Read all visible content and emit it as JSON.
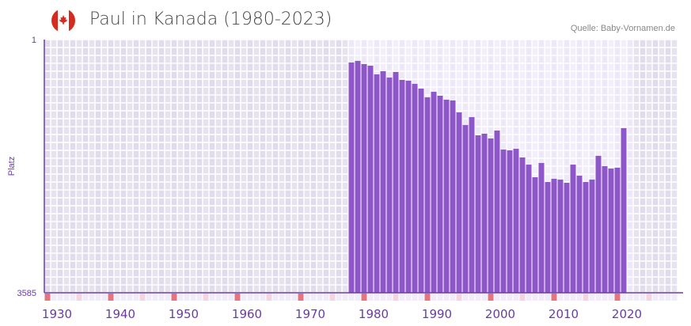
{
  "header": {
    "title": "Paul in Kanada (1980-2023)",
    "source": "Quelle: Baby-Vornamen.de",
    "flag_icon": "canada-flag-icon"
  },
  "chart_data": {
    "type": "bar",
    "title": "Paul in Kanada (1980-2023)",
    "xlabel": "",
    "ylabel": "Platz",
    "xlim": [
      1930,
      2030
    ],
    "ylim": [
      1,
      3585
    ],
    "y_inverted": true,
    "y_ticks": [
      "1",
      "3585"
    ],
    "x_ticks": [
      1930,
      1940,
      1950,
      1960,
      1970,
      1980,
      1990,
      2000,
      2010,
      2020
    ],
    "x": [
      1980,
      1981,
      1982,
      1983,
      1984,
      1985,
      1986,
      1987,
      1988,
      1989,
      1990,
      1991,
      1992,
      1993,
      1994,
      1995,
      1996,
      1997,
      1998,
      1999,
      2000,
      2001,
      2002,
      2003,
      2004,
      2005,
      2006,
      2007,
      2008,
      2009,
      2010,
      2011,
      2012,
      2013,
      2014,
      2015,
      2016,
      2017,
      2018,
      2019,
      2020,
      2021,
      2022,
      2023
    ],
    "values": [
      326,
      303,
      348,
      371,
      494,
      449,
      539,
      460,
      572,
      583,
      628,
      695,
      819,
      740,
      796,
      852,
      863,
      1031,
      1211,
      1099,
      1356,
      1334,
      1401,
      1289,
      1558,
      1569,
      1547,
      1670,
      1771,
      1950,
      1748,
      2017,
      1972,
      1983,
      2028,
      1771,
      1928,
      2017,
      1983,
      1647,
      1793,
      1827,
      1815,
      1255
    ],
    "colors": {
      "bar": "#8e56c8",
      "axis": "#6a3aa8",
      "grid_bg_out": "#e4e0ee",
      "grid_bg_in": "#efe9f8",
      "decade_marker": "#e6737d",
      "half_marker": "#f3d5df"
    }
  }
}
